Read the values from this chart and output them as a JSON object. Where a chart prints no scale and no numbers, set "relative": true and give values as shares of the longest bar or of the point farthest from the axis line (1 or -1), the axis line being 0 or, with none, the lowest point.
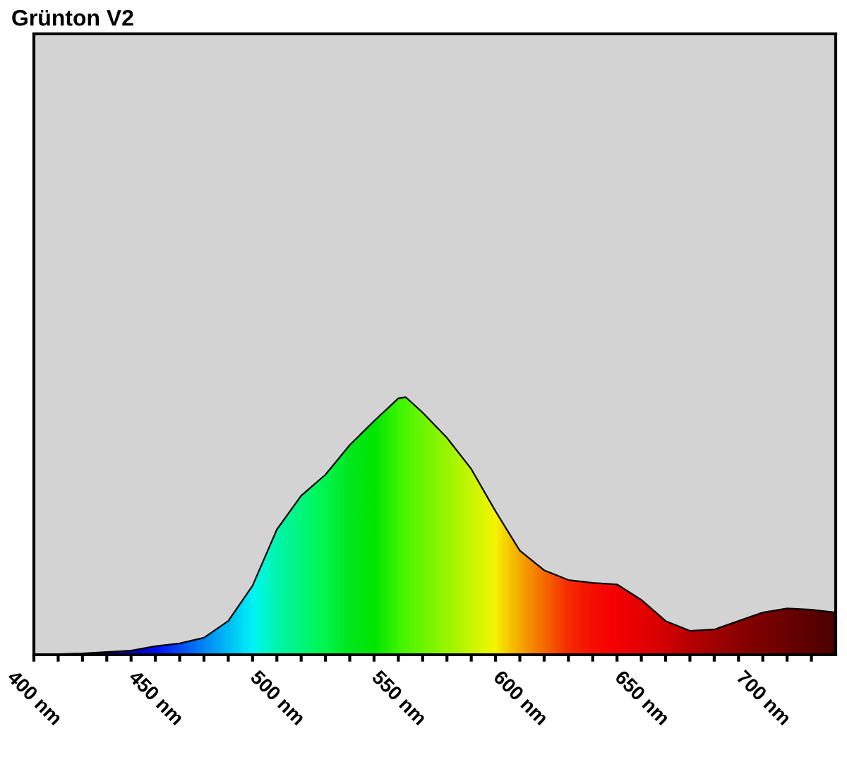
{
  "chart_data": {
    "type": "area",
    "title": "Grünton V2",
    "relative": true,
    "xlim": [
      400,
      730
    ],
    "xticks": [
      {
        "value": 400,
        "label": "400 nm"
      },
      {
        "value": 410,
        "label": null
      },
      {
        "value": 420,
        "label": null
      },
      {
        "value": 430,
        "label": null
      },
      {
        "value": 440,
        "label": null
      },
      {
        "value": 450,
        "label": "450 nm"
      },
      {
        "value": 460,
        "label": null
      },
      {
        "value": 470,
        "label": null
      },
      {
        "value": 480,
        "label": null
      },
      {
        "value": 490,
        "label": null
      },
      {
        "value": 500,
        "label": "500 nm"
      },
      {
        "value": 510,
        "label": null
      },
      {
        "value": 520,
        "label": null
      },
      {
        "value": 530,
        "label": null
      },
      {
        "value": 540,
        "label": null
      },
      {
        "value": 550,
        "label": "550 nm"
      },
      {
        "value": 560,
        "label": null
      },
      {
        "value": 570,
        "label": null
      },
      {
        "value": 580,
        "label": null
      },
      {
        "value": 590,
        "label": null
      },
      {
        "value": 600,
        "label": "600 nm"
      },
      {
        "value": 610,
        "label": null
      },
      {
        "value": 620,
        "label": null
      },
      {
        "value": 630,
        "label": null
      },
      {
        "value": 640,
        "label": null
      },
      {
        "value": 650,
        "label": "650 nm"
      },
      {
        "value": 660,
        "label": null
      },
      {
        "value": 670,
        "label": null
      },
      {
        "value": 680,
        "label": null
      },
      {
        "value": 690,
        "label": null
      },
      {
        "value": 700,
        "label": "700 nm"
      },
      {
        "value": 710,
        "label": null
      },
      {
        "value": 720,
        "label": null
      }
    ],
    "tick_labels": "x",
    "grid": false,
    "series": [
      {
        "color": "#000000",
        "x": [
          400,
          420,
          440,
          450,
          460,
          470,
          480,
          490,
          500,
          510,
          520,
          530,
          540,
          550,
          553,
          560,
          570,
          580,
          590,
          600,
          610,
          620,
          630,
          640,
          650,
          660,
          670,
          680,
          690,
          700,
          710,
          720,
          730
        ],
        "values": [
          0,
          0.005,
          0.016,
          0.033,
          0.044,
          0.066,
          0.131,
          0.268,
          0.486,
          0.617,
          0.699,
          0.814,
          0.907,
          0.995,
          1,
          0.94,
          0.842,
          0.721,
          0.557,
          0.404,
          0.328,
          0.29,
          0.279,
          0.273,
          0.213,
          0.131,
          0.093,
          0.098,
          0.131,
          0.164,
          0.18,
          0.175,
          0.164
        ],
        "colors": [
          "#000030",
          "#000070",
          "#0000c0",
          "#0010ff",
          "#0050ff",
          "#0090ff",
          "#00c8ff",
          "#00ffff",
          "#00ffb0",
          "#00ff80",
          "#00ff50",
          "#00f020",
          "#00f000",
          "#40ff00",
          "#50ff00",
          "#70ff00",
          "#a0ff00",
          "#d0ff00",
          "#ffff00",
          "#ffb000",
          "#ff7000",
          "#ff3000",
          "#ff1000",
          "#ff0000",
          "#f00000",
          "#dd0000",
          "#c00000",
          "#aa0000",
          "#940000",
          "#800000",
          "#700000",
          "#600000",
          "#500000"
        ]
      }
    ]
  }
}
